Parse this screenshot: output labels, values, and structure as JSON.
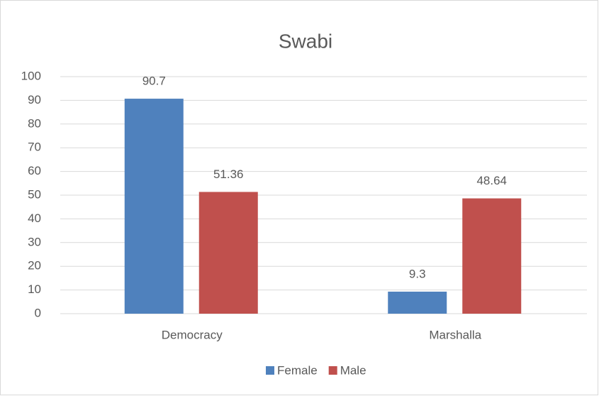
{
  "chart_data": {
    "type": "bar",
    "title": "Swabi",
    "categories": [
      "Democracy",
      "Marshalla"
    ],
    "series": [
      {
        "name": "Female",
        "color": "#4f81bd",
        "values": [
          90.7,
          9.3
        ]
      },
      {
        "name": "Male",
        "color": "#c0504d",
        "values": [
          51.36,
          48.64
        ]
      }
    ],
    "ylim": [
      0,
      100
    ],
    "yticks": [
      0,
      10,
      20,
      30,
      40,
      50,
      60,
      70,
      80,
      90,
      100
    ],
    "grid": true,
    "legend": "bottom"
  }
}
